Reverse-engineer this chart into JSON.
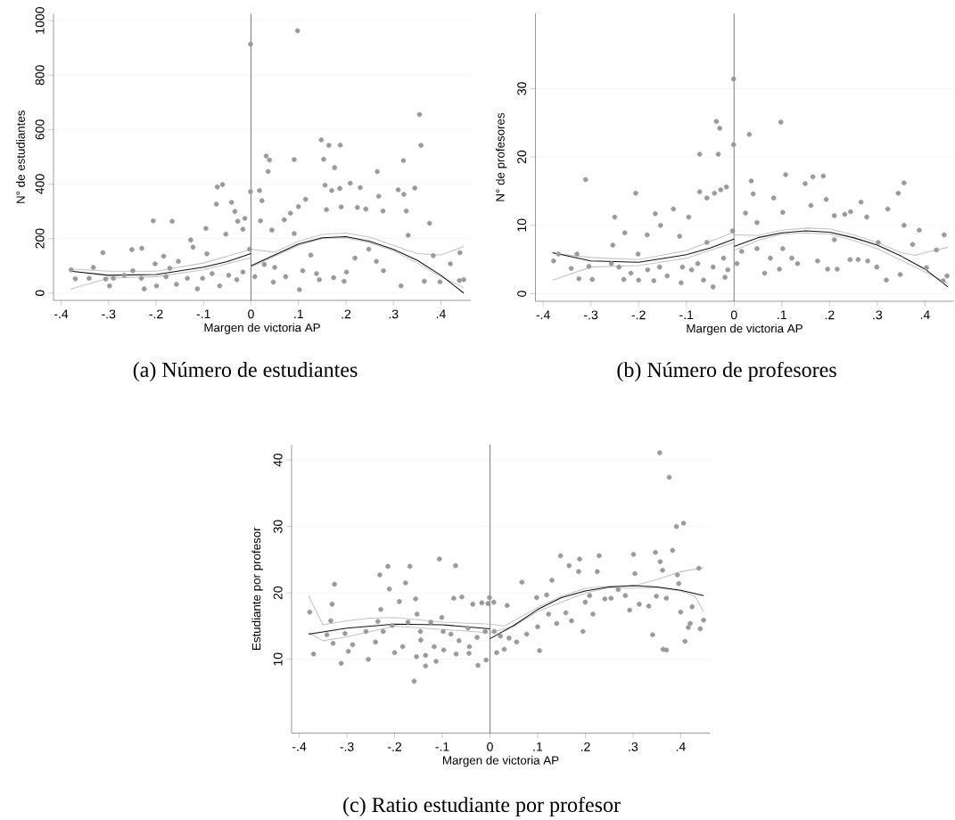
{
  "chart_data": [
    {
      "type": "scatter",
      "title": "(a) Número de estudiantes",
      "xlabel": "Margen de victoria AP",
      "ylabel": "N° de estudiantes",
      "xlim": [
        -0.416,
        0.463
      ],
      "ylim": [
        -27,
        1025
      ],
      "xticks": [
        {
          "value": -0.4,
          "label": "-.4"
        },
        {
          "value": -0.3,
          "label": "-.3"
        },
        {
          "value": -0.2,
          "label": "-.2"
        },
        {
          "value": -0.1,
          "label": "-.1"
        },
        0,
        {
          "value": 0.1,
          "label": ".1"
        },
        {
          "value": 0.2,
          "label": ".2"
        },
        {
          "value": 0.3,
          "label": ".3"
        },
        {
          "value": 0.4,
          "label": ".4"
        }
      ],
      "yticks": [
        0,
        200,
        400,
        600,
        800,
        1000
      ],
      "grid": "y",
      "ref_lines": [
        {
          "axis": "x",
          "value": 0,
          "color": "#5a5a5a"
        }
      ],
      "series": [
        {
          "type": "scatter",
          "marker": "circle",
          "color": "#9a9a9a",
          "x": [
            -0.379,
            -0.37,
            -0.332,
            -0.312,
            -0.298,
            -0.306,
            -0.251,
            -0.23,
            -0.225,
            -0.249,
            -0.206,
            -0.202,
            -0.184,
            -0.166,
            -0.171,
            -0.153,
            -0.127,
            -0.122,
            -0.113,
            -0.095,
            -0.093,
            -0.073,
            -0.071,
            -0.06,
            -0.053,
            -0.041,
            -0.034,
            -0.028,
            -0.013,
            -0.017,
            -0.001,
            -0.001,
            -0.003,
            0.018,
            0.023,
            0.02,
            0.032,
            0.039,
            0.036,
            0.044,
            0.083,
            0.07,
            0.091,
            0.098,
            0.1,
            0.115,
            0.102,
            0.091,
            0.148,
            0.164,
            0.188,
            0.153,
            0.176,
            0.156,
            0.17,
            0.187,
            0.209,
            0.23,
            0.159,
            0.19,
            0.224,
            0.242,
            0.266,
            0.269,
            0.278,
            0.321,
            0.31,
            0.322,
            0.327,
            0.345,
            0.355,
            0.358,
            0.376,
            0.331,
            0.44,
            0.448,
            0.439,
            0.398,
            0.42,
            0.384,
            0.365,
            0.316,
            0.279,
            0.264,
            0.248,
            0.219,
            0.201,
            0.196,
            0.174,
            0.144,
            0.138,
            0.126,
            0.109,
            0.073,
            0.047,
            0.05,
            0.028,
            0.008,
            -0.017,
            -0.03,
            -0.047,
            -0.066,
            -0.082,
            -0.102,
            -0.134,
            -0.157,
            -0.179,
            -0.199,
            -0.231,
            -0.267,
            -0.29,
            -0.341
          ],
          "values": [
            85,
            52,
            94,
            148,
            26,
            51,
            159,
            164,
            15,
            82,
            265,
            107,
            135,
            263,
            91,
            116,
            195,
            168,
            15,
            237,
            144,
            326,
            389,
            398,
            216,
            333,
            299,
            263,
            274,
            234,
            914,
            372,
            161,
            376,
            339,
            265,
            503,
            488,
            446,
            231,
            293,
            269,
            490,
            963,
            317,
            344,
            12,
            218,
            562,
            542,
            543,
            491,
            460,
            396,
            376,
            384,
            403,
            387,
            306,
            316,
            314,
            308,
            446,
            355,
            301,
            486,
            379,
            362,
            301,
            385,
            655,
            542,
            256,
            212,
            148,
            49,
            46,
            41,
            107,
            137,
            43,
            26,
            82,
            116,
            161,
            128,
            77,
            43,
            56,
            49,
            71,
            139,
            82,
            60,
            40,
            94,
            105,
            60,
            77,
            49,
            65,
            26,
            71,
            54,
            54,
            32,
            60,
            26,
            54,
            65,
            54,
            54
          ]
        },
        {
          "type": "line",
          "marker": "none",
          "color": "#c4c4c4",
          "x": [
            -0.38,
            -0.3,
            -0.2,
            -0.1,
            0,
            0,
            0.05,
            0.1,
            0.15,
            0.2,
            0.25,
            0.3,
            0.35,
            0.4,
            0.448
          ],
          "values": [
            88,
            80,
            80,
            110,
            160,
            160,
            150,
            190,
            215,
            220,
            205,
            175,
            145,
            140,
            170
          ]
        },
        {
          "type": "line",
          "marker": "none",
          "color": "#c4c4c4",
          "x": [
            -0.38,
            -0.3,
            -0.2,
            -0.1,
            0,
            0,
            0.05,
            0.1,
            0.15,
            0.2,
            0.25,
            0.3,
            0.35,
            0.4,
            0.448
          ],
          "values": [
            15,
            55,
            60,
            85,
            130,
            95,
            135,
            175,
            200,
            203,
            185,
            155,
            110,
            60,
            20
          ]
        },
        {
          "type": "line",
          "marker": "none",
          "color": "#111111",
          "x": [
            -0.38,
            -0.3,
            -0.2,
            -0.1,
            -0.05,
            0,
            0,
            0.05,
            0.1,
            0.15,
            0.2,
            0.25,
            0.3,
            0.35,
            0.4,
            0.448
          ],
          "values": [
            80,
            65,
            68,
            95,
            115,
            145,
            100,
            140,
            180,
            203,
            207,
            190,
            160,
            120,
            65,
            0
          ]
        }
      ]
    },
    {
      "type": "scatter",
      "title": "(b) Número de profesores",
      "xlabel": "Margen de victoria AP",
      "ylabel": "N° de profesores",
      "xlim": [
        -0.416,
        0.46
      ],
      "ylim": [
        -1.1,
        41
      ],
      "xticks": [
        {
          "value": -0.4,
          "label": "-.4"
        },
        {
          "value": -0.3,
          "label": "-.3"
        },
        {
          "value": -0.2,
          "label": "-.2"
        },
        {
          "value": -0.1,
          "label": "-.1"
        },
        0,
        {
          "value": 0.1,
          "label": ".1"
        },
        {
          "value": 0.2,
          "label": ".2"
        },
        {
          "value": 0.3,
          "label": ".3"
        },
        {
          "value": 0.4,
          "label": ".4"
        }
      ],
      "yticks": [
        0,
        10,
        20,
        30
      ],
      "grid": "y",
      "ref_lines": [
        {
          "axis": "x",
          "value": 0,
          "color": "#5a5a5a"
        }
      ],
      "series": [
        {
          "type": "scatter",
          "marker": "circle",
          "color": "#9a9a9a",
          "x": [
            -0.378,
            -0.368,
            -0.329,
            -0.311,
            -0.325,
            -0.341,
            -0.297,
            -0.304,
            -0.25,
            -0.254,
            -0.229,
            -0.231,
            -0.206,
            -0.2,
            -0.201,
            -0.182,
            -0.165,
            -0.154,
            -0.168,
            -0.127,
            -0.114,
            -0.111,
            -0.095,
            -0.072,
            -0.072,
            -0.057,
            -0.037,
            -0.03,
            -0.033,
            -0.041,
            -0.028,
            -0.016,
            -0.044,
            -0.064,
            -0.001,
            -0.001,
            -0.003,
            -0.019,
            0.032,
            0.036,
            0.04,
            0.024,
            0.048,
            0.083,
            0.098,
            0.108,
            0.102,
            0.095,
            0.149,
            0.165,
            0.187,
            0.161,
            0.193,
            0.21,
            0.232,
            0.244,
            0.266,
            0.278,
            0.322,
            0.344,
            0.356,
            0.356,
            0.388,
            0.44,
            0.446,
            0.438,
            0.424,
            0.403,
            0.374,
            0.348,
            0.319,
            0.299,
            0.28,
            0.26,
            0.243,
            0.216,
            0.196,
            0.175,
            0.133,
            0.121,
            0.102,
            0.076,
            0.064,
            0.048,
            0.016,
            0.006,
            -0.013,
            -0.022,
            -0.044,
            -0.057,
            -0.076,
            -0.089,
            -0.108,
            -0.14,
            -0.156,
            -0.181,
            -0.216,
            -0.241,
            -0.257,
            0.21,
            0.302
          ],
          "values": [
            4.8,
            5.8,
            5.8,
            16.7,
            2.2,
            3.7,
            2.1,
            4.0,
            11.2,
            7.1,
            8.9,
            2.1,
            14.7,
            2.0,
            5.8,
            8.6,
            11.7,
            10.0,
            1.9,
            12.4,
            8.4,
            1.6,
            11.2,
            20.4,
            14.9,
            14.0,
            25.2,
            24.2,
            20.4,
            14.7,
            15.2,
            15.6,
            1.0,
            2.0,
            31.4,
            21.8,
            9.2,
            2.4,
            23.3,
            16.5,
            14.6,
            11.8,
            10.4,
            14.0,
            25.1,
            17.4,
            11.9,
            3.6,
            16.1,
            17.1,
            17.2,
            12.9,
            13.8,
            11.4,
            11.6,
            12.0,
            13.4,
            11.2,
            12.4,
            14.7,
            16.2,
            10.0,
            9.3,
            8.6,
            2.6,
            1.9,
            6.4,
            3.8,
            7.2,
            2.8,
            2.0,
            3.9,
            4.8,
            5.0,
            5.0,
            3.6,
            3.6,
            4.8,
            4.4,
            5.2,
            6.6,
            5.2,
            3.0,
            6.6,
            6.2,
            4.4,
            3.5,
            5.2,
            3.9,
            7.5,
            4.4,
            3.5,
            3.9,
            2.6,
            3.9,
            3.5,
            3.0,
            3.9,
            4.4,
            7.9,
            7.5
          ]
        },
        {
          "type": "line",
          "marker": "none",
          "color": "#c4c4c4",
          "x": [
            -0.38,
            -0.3,
            -0.2,
            -0.1,
            0,
            0,
            0.05,
            0.1,
            0.15,
            0.2,
            0.25,
            0.3,
            0.35,
            0.38,
            0.4,
            0.448
          ],
          "values": [
            5.9,
            5.3,
            5.0,
            6.3,
            9.0,
            8.6,
            8.5,
            9.3,
            9.6,
            9.5,
            8.6,
            7.5,
            6.0,
            5.6,
            6.0,
            6.8
          ]
        },
        {
          "type": "line",
          "marker": "none",
          "color": "#c4c4c4",
          "x": [
            -0.38,
            -0.3,
            -0.2,
            -0.1,
            0,
            0,
            0.05,
            0.1,
            0.15,
            0.2,
            0.25,
            0.3,
            0.35,
            0.4,
            0.448
          ],
          "values": [
            2.0,
            3.9,
            4.1,
            5.2,
            7.5,
            6.3,
            7.8,
            8.7,
            8.9,
            8.7,
            7.8,
            6.6,
            4.9,
            3.2,
            1.5
          ]
        },
        {
          "type": "line",
          "marker": "none",
          "color": "#111111",
          "x": [
            -0.38,
            -0.3,
            -0.2,
            -0.1,
            -0.05,
            0,
            0,
            0.05,
            0.1,
            0.15,
            0.2,
            0.25,
            0.3,
            0.35,
            0.4,
            0.448
          ],
          "values": [
            6.0,
            4.8,
            4.6,
            5.7,
            6.7,
            8.0,
            6.9,
            8.2,
            8.9,
            9.2,
            9.0,
            8.2,
            7.1,
            5.5,
            3.6,
            1.0
          ]
        }
      ]
    },
    {
      "type": "scatter",
      "title": "(c) Ratio estudiante por profesor",
      "xlabel": "Margen de victoria AP",
      "ylabel": "Estudiante por profesor",
      "xlim": [
        -0.416,
        0.461
      ],
      "ylim": [
        -1.1,
        42.3
      ],
      "xticks": [
        {
          "value": -0.4,
          "label": "-.4"
        },
        {
          "value": -0.3,
          "label": "-.3"
        },
        {
          "value": -0.2,
          "label": "-.2"
        },
        {
          "value": -0.1,
          "label": "-.1"
        },
        0,
        {
          "value": 0.1,
          "label": ".1"
        },
        {
          "value": 0.2,
          "label": ".2"
        },
        {
          "value": 0.3,
          "label": ".3"
        },
        {
          "value": 0.4,
          "label": ".4"
        }
      ],
      "yticks": [
        10,
        20,
        30,
        40
      ],
      "grid": "y",
      "ref_lines": [
        {
          "axis": "x",
          "value": 0,
          "color": "#5a5a5a"
        }
      ],
      "series": [
        {
          "type": "scatter",
          "marker": "circle",
          "color": "#9a9a9a",
          "x": [
            -0.378,
            -0.37,
            -0.342,
            -0.334,
            -0.331,
            -0.326,
            -0.329,
            -0.312,
            -0.304,
            -0.297,
            -0.288,
            -0.255,
            -0.231,
            -0.229,
            -0.214,
            -0.211,
            -0.235,
            -0.24,
            -0.2,
            -0.19,
            -0.177,
            -0.168,
            -0.159,
            -0.156,
            -0.154,
            -0.153,
            -0.145,
            -0.135,
            -0.135,
            -0.113,
            -0.106,
            -0.101,
            -0.097,
            -0.076,
            -0.072,
            -0.071,
            -0.059,
            -0.043,
            -0.044,
            -0.036,
            -0.025,
            -0.017,
            -0.008,
            -0.001,
            -0.004,
            0.008,
            0.014,
            0.03,
            0.036,
            0.067,
            0.098,
            0.104,
            0.119,
            0.13,
            0.148,
            0.166,
            0.188,
            0.186,
            0.195,
            0.225,
            0.229,
            0.301,
            0.304,
            0.347,
            0.356,
            0.357,
            0.362,
            0.376,
            0.383,
            0.391,
            0.406,
            0.363,
            0.37,
            0.341,
            0.409,
            0.416,
            0.42,
            0.424,
            0.4,
            0.438,
            0.441,
            0.448,
            0.393,
            0.396,
            0.37,
            0.349,
            0.333,
            0.313,
            0.293,
            0.284,
            0.269,
            0.254,
            0.241,
            0.216,
            0.209,
            0.2,
            0.159,
            0.171,
            0.14,
            0.123,
            0.1,
            0.077,
            0.056,
            0.04,
            0.022,
            0.009,
            -0.01,
            -0.027,
            -0.046,
            -0.065,
            -0.082,
            -0.098,
            -0.117,
            -0.124,
            -0.146,
            -0.172,
            -0.183,
            -0.205,
            -0.224,
            -0.26
          ],
          "values": [
            17.1,
            10.8,
            13.7,
            15.8,
            18.3,
            21.3,
            12.4,
            9.4,
            13.9,
            11.2,
            12.2,
            10.0,
            22.7,
            17.5,
            24.0,
            20.6,
            15.7,
            12.6,
            11.0,
            18.7,
            21.5,
            24.0,
            6.7,
            19.1,
            10.4,
            16.8,
            12.9,
            9.0,
            10.6,
            9.7,
            25.1,
            16.3,
            11.4,
            19.2,
            24.1,
            10.8,
            19.4,
            11.9,
            10.9,
            18.3,
            9.1,
            18.5,
            9.9,
            19.3,
            18.4,
            18.6,
            11.0,
            11.5,
            18.1,
            21.6,
            19.3,
            11.3,
            19.7,
            21.9,
            25.6,
            24.1,
            25.1,
            23.2,
            14.2,
            23.2,
            25.6,
            25.8,
            22.9,
            26.1,
            41.1,
            24.7,
            23.4,
            37.4,
            26.4,
            30.0,
            30.5,
            11.5,
            11.4,
            13.7,
            12.7,
            14.8,
            15.4,
            17.9,
            17.1,
            23.7,
            14.6,
            15.9,
            22.7,
            21.4,
            19.2,
            19.5,
            18.0,
            18.3,
            17.4,
            19.6,
            20.5,
            19.2,
            19.1,
            16.8,
            19.6,
            18.6,
            17.0,
            15.8,
            15.4,
            16.8,
            14.9,
            13.8,
            12.6,
            13.2,
            13.5,
            14.2,
            14.2,
            13.3,
            14.7,
            12.8,
            13.8,
            14.2,
            11.9,
            15.6,
            14.2,
            15.6,
            11.9,
            15.1,
            14.2,
            14.2
          ]
        },
        {
          "type": "line",
          "marker": "none",
          "color": "#c4c4c4",
          "x": [
            -0.38,
            -0.35,
            -0.3,
            -0.25,
            -0.2,
            -0.1,
            0,
            0,
            0.03,
            0.1,
            0.15,
            0.2,
            0.25,
            0.3,
            0.35,
            0.4,
            0.448
          ],
          "values": [
            19.5,
            15.2,
            15.8,
            16.2,
            16.3,
            15.6,
            15.3,
            15.3,
            15.0,
            17.8,
            19.5,
            20.7,
            21.0,
            21.0,
            22.0,
            23.2,
            23.8
          ]
        },
        {
          "type": "line",
          "marker": "none",
          "color": "#c4c4c4",
          "x": [
            -0.38,
            -0.35,
            -0.3,
            -0.2,
            -0.1,
            0,
            0,
            0.05,
            0.1,
            0.2,
            0.25,
            0.3,
            0.35,
            0.4,
            0.43,
            0.448
          ],
          "values": [
            14.0,
            12.8,
            13.4,
            15.0,
            14.5,
            14.0,
            14.0,
            15.0,
            17.2,
            20.0,
            20.8,
            20.7,
            20.8,
            20.3,
            19.5,
            17.2
          ]
        },
        {
          "type": "line",
          "marker": "none",
          "color": "#111111",
          "x": [
            -0.38,
            -0.3,
            -0.2,
            -0.1,
            0,
            0,
            0.05,
            0.1,
            0.15,
            0.2,
            0.25,
            0.3,
            0.35,
            0.4,
            0.448
          ],
          "values": [
            13.8,
            14.7,
            15.3,
            15.2,
            14.6,
            13.1,
            15.1,
            17.5,
            19.3,
            20.3,
            20.9,
            21.1,
            20.9,
            20.4,
            19.6
          ]
        }
      ]
    }
  ]
}
